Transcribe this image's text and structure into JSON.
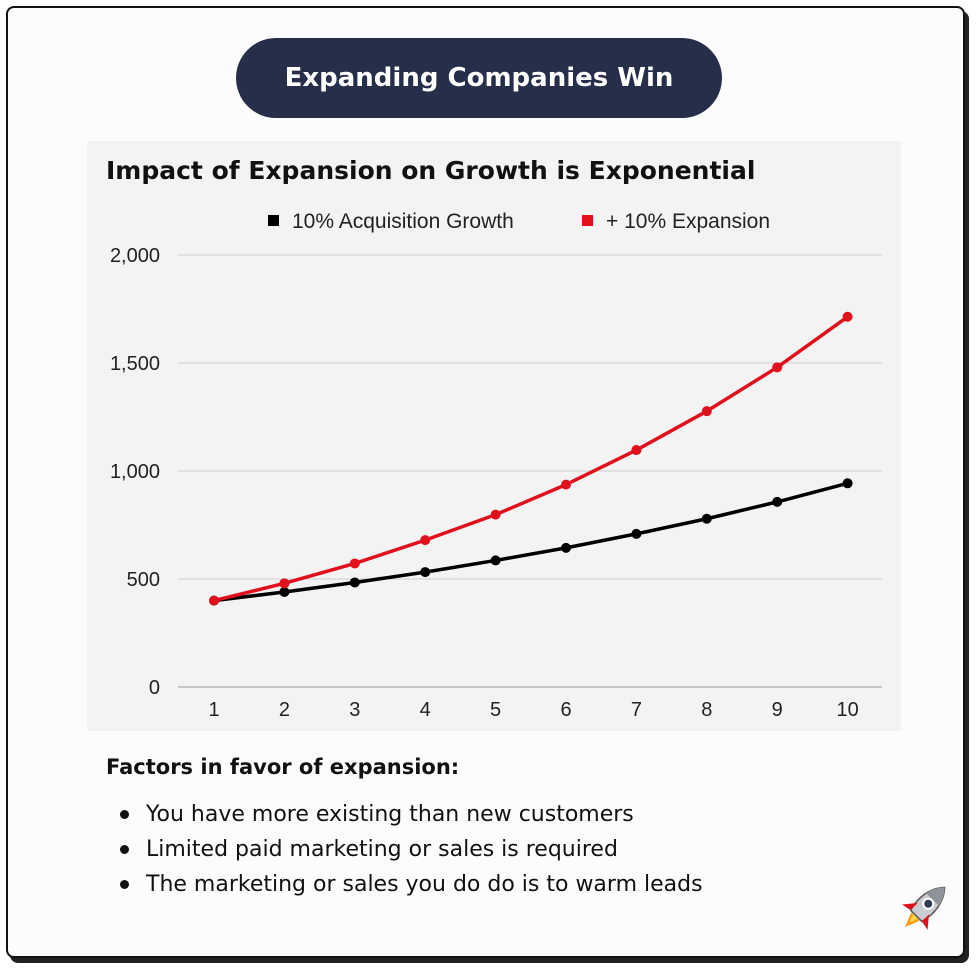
{
  "header": {
    "title": "Expanding Companies Win"
  },
  "chart_data": {
    "type": "line",
    "title": "Impact of Expansion on Growth is Exponential",
    "x": [
      1,
      2,
      3,
      4,
      5,
      6,
      7,
      8,
      9,
      10
    ],
    "ylim": [
      0,
      2000
    ],
    "yticks": [
      0,
      500,
      1000,
      1500,
      2000
    ],
    "ytick_labels": [
      "0",
      "500",
      "1,000",
      "1,500",
      "2,000"
    ],
    "grid": true,
    "legend_position": "top",
    "series": [
      {
        "name": "10% Acquisition Growth",
        "color": "#000000",
        "values": [
          400,
          440,
          484,
          532,
          586,
          644,
          709,
          779,
          857,
          943
        ]
      },
      {
        "name": "+ 10% Expansion",
        "color": "#e0101c",
        "values": [
          400,
          480,
          572,
          680,
          798,
          937,
          1097,
          1277,
          1480,
          1714
        ]
      }
    ]
  },
  "factors": {
    "heading": "Factors in favor of expansion:",
    "items": [
      "You have more existing than new customers",
      "Limited paid marketing or sales is required",
      "The marketing or sales you do do is to warm leads"
    ]
  },
  "decoration": {
    "icon": "rocket-icon"
  }
}
